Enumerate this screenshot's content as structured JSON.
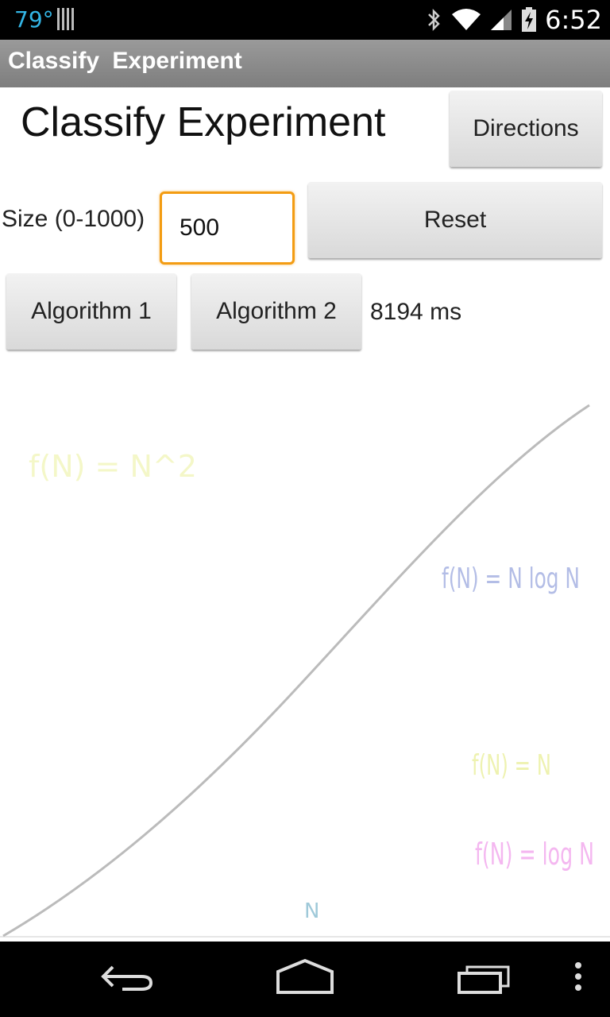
{
  "status_bar": {
    "temperature": "79°",
    "time": "6:52",
    "icons": [
      "signal-bars-icon",
      "bluetooth-icon",
      "wifi-icon",
      "cell-signal-icon",
      "battery-icon"
    ]
  },
  "action_bar": {
    "title": "Classify  Experiment"
  },
  "header": {
    "title": "Classify Experiment",
    "directions_label": "Directions"
  },
  "controls": {
    "size_label": "Size (0-1000)",
    "size_value": "500",
    "reset_label": "Reset",
    "algorithm1_label": "Algorithm 1",
    "algorithm2_label": "Algorithm 2",
    "result_time": "8194 ms"
  },
  "graph": {
    "labels": {
      "n_squared": "f(N) = N^2",
      "n_log_n": "f(N) = N log N",
      "n": "f(N) = N",
      "log_n": "f(N) = log N",
      "x_axis": "N"
    },
    "colors": {
      "n_squared": "#f4f7c8",
      "n_log_n": "#b3bde6",
      "n": "#eef2b0",
      "log_n": "#f4b7f0",
      "x_axis": "#9fc9d9",
      "curve": "#bbbbbb"
    }
  },
  "nav_bar": {
    "icons": [
      "back-icon",
      "home-icon",
      "recents-icon",
      "menu-icon"
    ]
  }
}
